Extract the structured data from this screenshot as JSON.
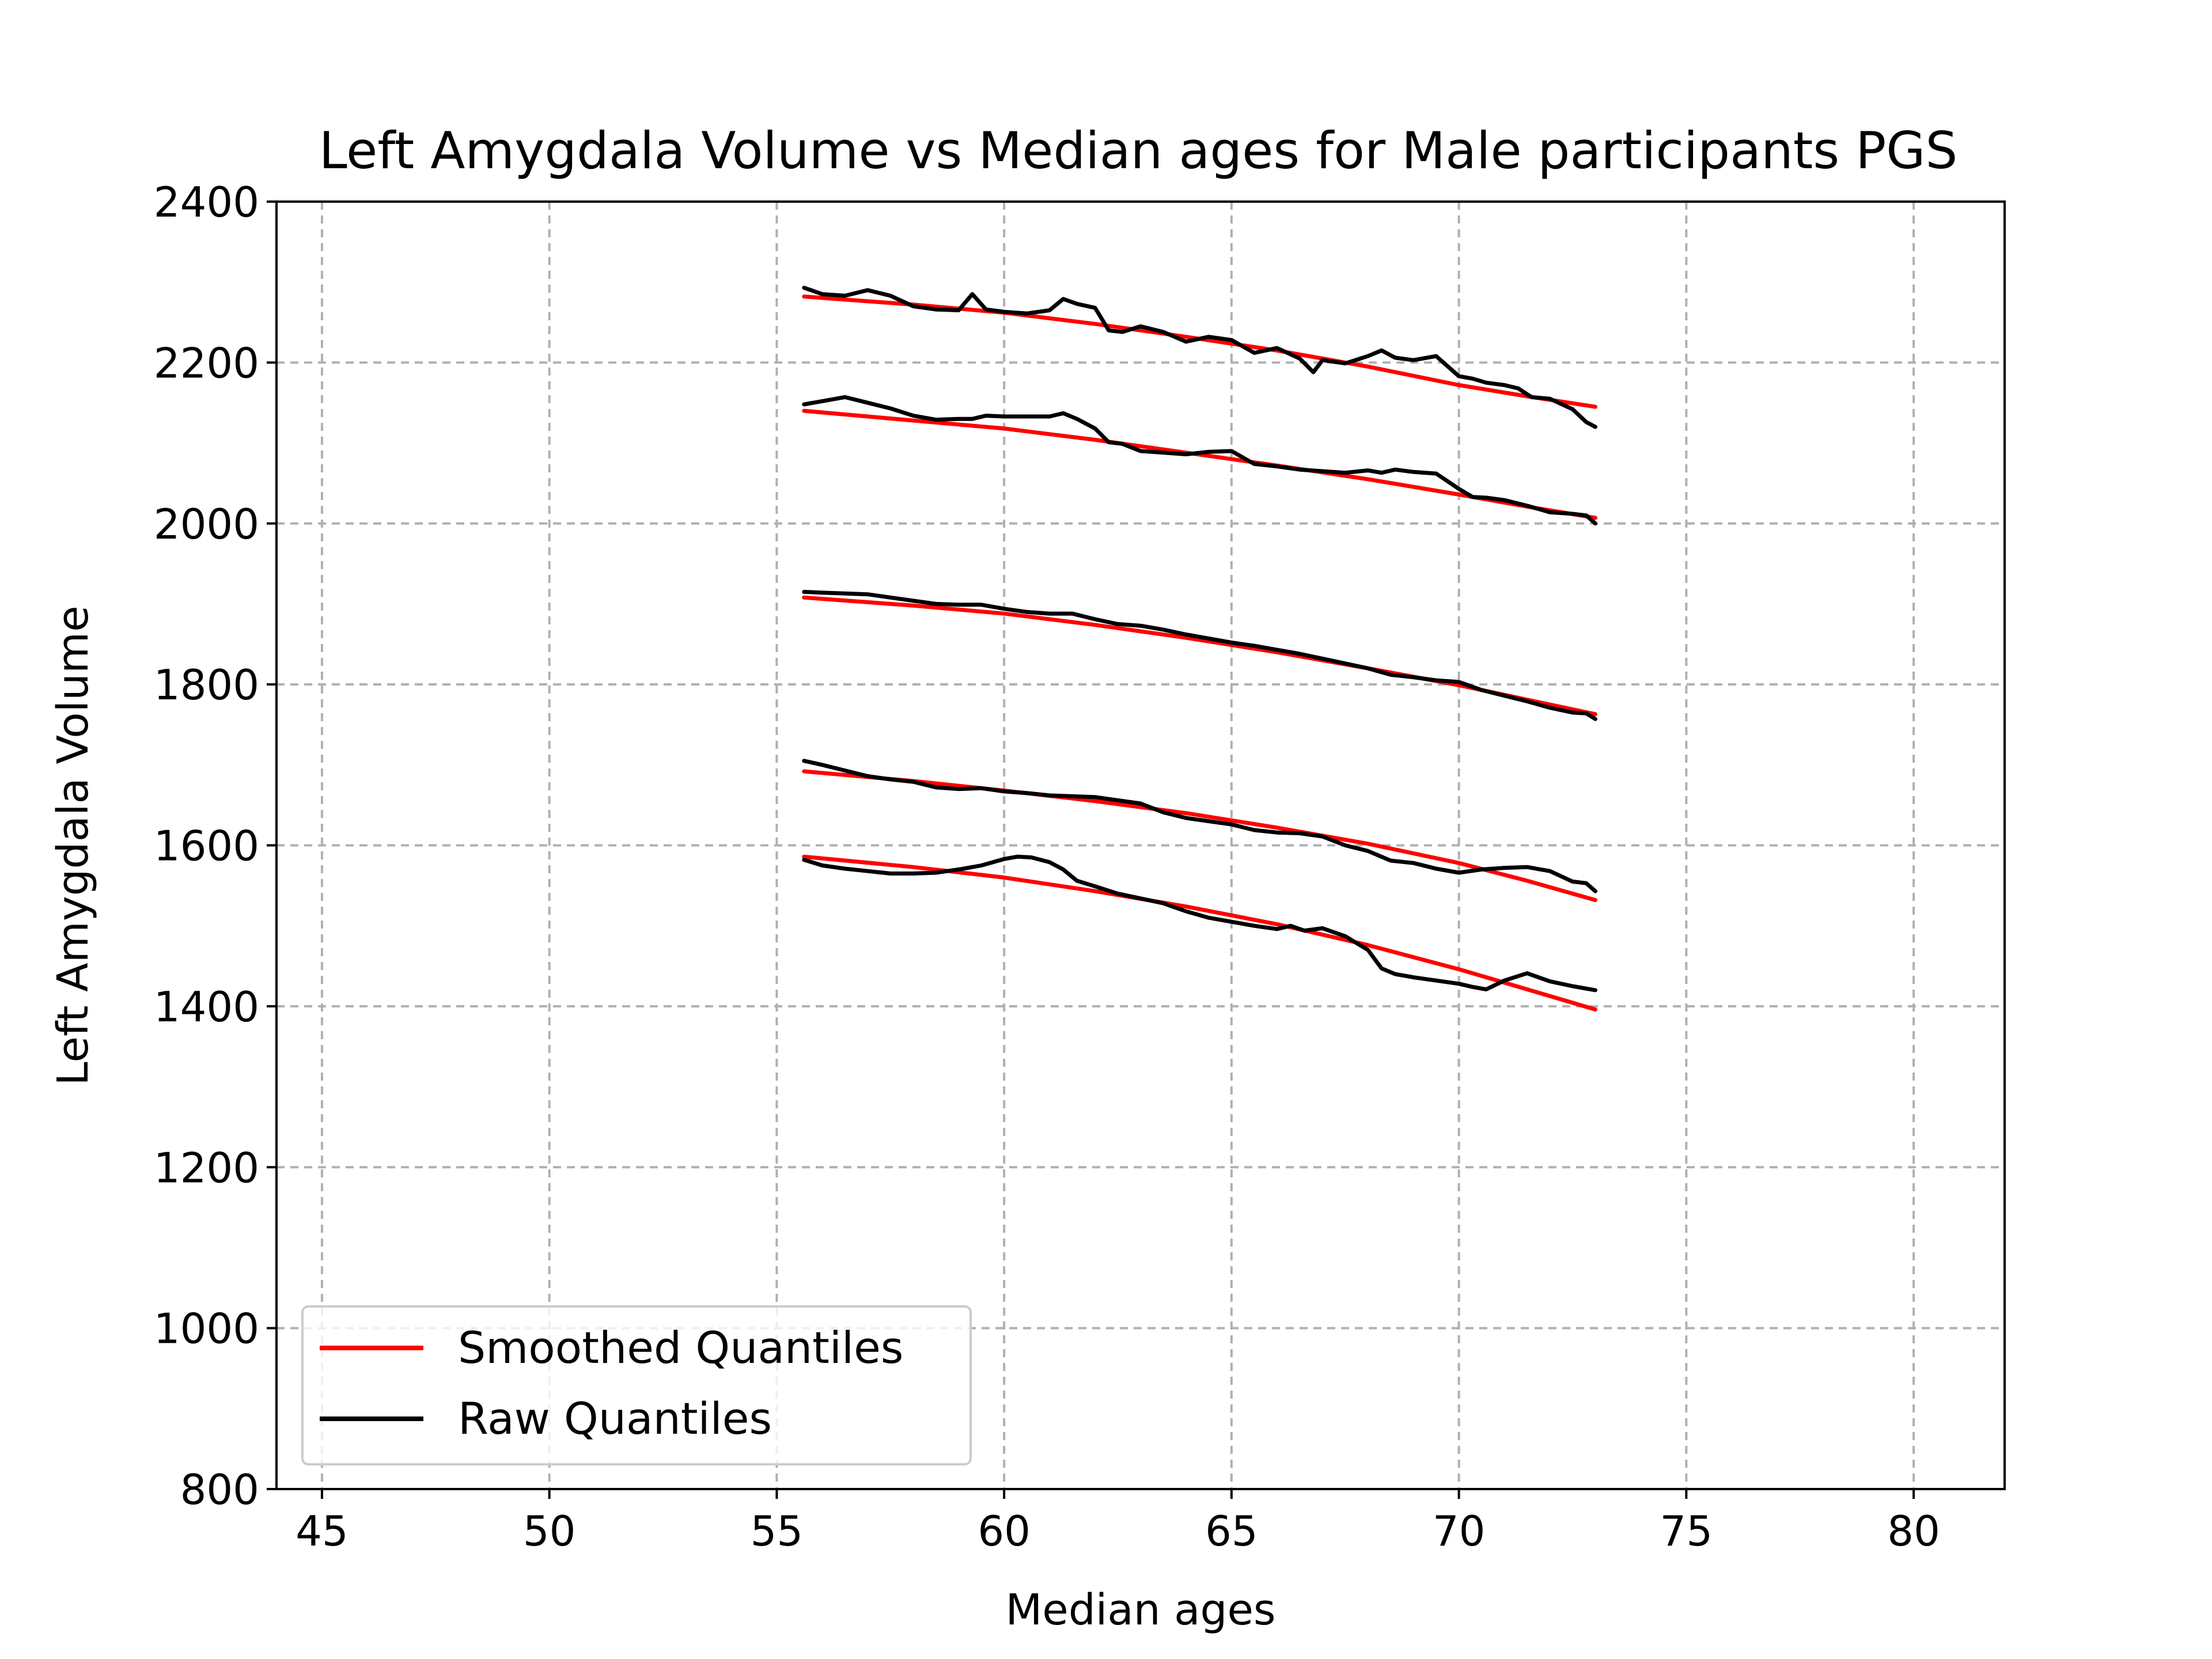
{
  "chart_data": {
    "type": "line",
    "title": "Left Amygdala Volume vs Median ages for Male participants  PGS",
    "xlabel": "Median ages",
    "ylabel": "Left Amygdala Volume",
    "xlim": [
      44,
      82
    ],
    "ylim": [
      800,
      2400
    ],
    "xticks": [
      45,
      50,
      55,
      60,
      65,
      70,
      75,
      80
    ],
    "yticks": [
      800,
      1000,
      1200,
      1400,
      1600,
      1800,
      2000,
      2200,
      2400
    ],
    "grid": true,
    "legend": {
      "position": "lower-left",
      "entries": [
        {
          "label": "Smoothed Quantiles",
          "color": "#ff0000"
        },
        {
          "label": "Raw Quantiles",
          "color": "#000000"
        }
      ]
    },
    "colors": {
      "smoothed": "#ff0000",
      "raw": "#000000"
    },
    "smoothed": [
      {
        "x": [
          55.6,
          58,
          60,
          62,
          64,
          66,
          68,
          70,
          71.5,
          73
        ],
        "y": [
          2282,
          2272,
          2262,
          2248,
          2232,
          2215,
          2195,
          2172,
          2158,
          2145
        ]
      },
      {
        "x": [
          55.6,
          58,
          60,
          62,
          64,
          66,
          68,
          70,
          71.5,
          73
        ],
        "y": [
          2140,
          2128,
          2118,
          2104,
          2088,
          2072,
          2055,
          2036,
          2021,
          2007
        ]
      },
      {
        "x": [
          55.6,
          58,
          60,
          62,
          64,
          66,
          68,
          70,
          71.5,
          73
        ],
        "y": [
          1908,
          1898,
          1888,
          1874,
          1858,
          1840,
          1820,
          1799,
          1781,
          1763
        ]
      },
      {
        "x": [
          55.6,
          58,
          60,
          62,
          64,
          66,
          68,
          70,
          71.5,
          73
        ],
        "y": [
          1692,
          1680,
          1668,
          1655,
          1640,
          1622,
          1602,
          1578,
          1556,
          1532
        ]
      },
      {
        "x": [
          55.6,
          58,
          60,
          62,
          64,
          66,
          68,
          70,
          71.5,
          73
        ],
        "y": [
          1586,
          1573,
          1560,
          1543,
          1524,
          1502,
          1476,
          1446,
          1421,
          1396
        ]
      }
    ],
    "raw": [
      {
        "x": [
          55.6,
          56,
          56.5,
          57,
          57.5,
          58,
          58.5,
          59,
          59.3,
          59.6,
          60,
          60.5,
          61,
          61.3,
          61.6,
          62,
          62.3,
          62.6,
          63,
          63.5,
          64,
          64.5,
          65,
          65.5,
          66,
          66.5,
          66.8,
          67,
          67.5,
          68,
          68.3,
          68.6,
          69,
          69.5,
          70,
          70.3,
          70.6,
          71,
          71.3,
          71.6,
          72,
          72.5,
          72.8,
          73
        ],
        "y": [
          2293,
          2285,
          2283,
          2290,
          2283,
          2270,
          2266,
          2265,
          2285,
          2266,
          2263,
          2261,
          2265,
          2279,
          2273,
          2268,
          2240,
          2238,
          2245,
          2238,
          2226,
          2232,
          2228,
          2212,
          2218,
          2205,
          2188,
          2203,
          2199,
          2208,
          2215,
          2206,
          2203,
          2208,
          2183,
          2180,
          2175,
          2172,
          2168,
          2157,
          2155,
          2142,
          2126,
          2120
        ]
      },
      {
        "x": [
          55.6,
          56,
          56.5,
          57,
          57.5,
          58,
          58.5,
          59,
          59.3,
          59.6,
          60,
          60.5,
          61,
          61.3,
          61.6,
          62,
          62.3,
          62.6,
          63,
          63.5,
          64,
          64.5,
          65,
          65.5,
          66,
          66.5,
          67,
          67.5,
          68,
          68.3,
          68.6,
          69,
          69.5,
          70,
          70.3,
          70.6,
          71,
          71.5,
          72,
          72.5,
          72.8,
          73
        ],
        "y": [
          2148,
          2152,
          2157,
          2150,
          2143,
          2134,
          2129,
          2130,
          2130,
          2134,
          2133,
          2133,
          2133,
          2137,
          2130,
          2118,
          2101,
          2099,
          2090,
          2088,
          2086,
          2089,
          2090,
          2074,
          2071,
          2067,
          2065,
          2063,
          2066,
          2063,
          2067,
          2064,
          2062,
          2043,
          2033,
          2032,
          2029,
          2022,
          2014,
          2012,
          2010,
          2000
        ]
      },
      {
        "x": [
          55.6,
          56,
          56.5,
          57,
          57.5,
          58,
          58.5,
          59,
          59.5,
          60,
          60.5,
          61,
          61.5,
          62,
          62.5,
          63,
          63.5,
          64,
          64.5,
          65,
          65.5,
          66,
          66.5,
          67,
          67.5,
          68,
          68.5,
          69,
          69.5,
          70,
          70.5,
          71,
          71.5,
          72,
          72.5,
          72.8,
          73
        ],
        "y": [
          1915,
          1914,
          1913,
          1912,
          1908,
          1904,
          1900,
          1899,
          1899,
          1894,
          1890,
          1888,
          1888,
          1881,
          1875,
          1873,
          1868,
          1862,
          1857,
          1852,
          1848,
          1843,
          1838,
          1832,
          1826,
          1820,
          1812,
          1809,
          1805,
          1803,
          1793,
          1786,
          1779,
          1771,
          1765,
          1764,
          1757
        ]
      },
      {
        "x": [
          55.6,
          56,
          56.5,
          57,
          57.5,
          58,
          58.5,
          59,
          59.5,
          60,
          60.5,
          61,
          61.5,
          62,
          62.5,
          63,
          63.5,
          64,
          64.5,
          65,
          65.5,
          66,
          66.5,
          67,
          67.5,
          68,
          68.5,
          69,
          69.5,
          70,
          70.5,
          71,
          71.5,
          72,
          72.5,
          72.8,
          73
        ],
        "y": [
          1705,
          1700,
          1693,
          1686,
          1682,
          1679,
          1672,
          1670,
          1671,
          1667,
          1665,
          1662,
          1661,
          1660,
          1656,
          1652,
          1641,
          1634,
          1630,
          1626,
          1619,
          1616,
          1615,
          1611,
          1600,
          1593,
          1581,
          1578,
          1571,
          1566,
          1570,
          1572,
          1573,
          1568,
          1555,
          1553,
          1543
        ]
      },
      {
        "x": [
          55.6,
          56,
          56.5,
          57,
          57.5,
          58,
          58.5,
          59,
          59.5,
          60,
          60.3,
          60.6,
          61,
          61.3,
          61.6,
          62,
          62.5,
          63,
          63.5,
          64,
          64.5,
          65,
          65.5,
          66,
          66.3,
          66.6,
          67,
          67.5,
          68,
          68.3,
          68.6,
          69,
          69.5,
          70,
          70.3,
          70.6,
          71,
          71.5,
          72,
          72.5,
          73
        ],
        "y": [
          1582,
          1575,
          1571,
          1568,
          1565,
          1565,
          1566,
          1570,
          1575,
          1583,
          1586,
          1585,
          1579,
          1570,
          1556,
          1549,
          1540,
          1534,
          1528,
          1518,
          1510,
          1505,
          1500,
          1496,
          1500,
          1494,
          1497,
          1487,
          1470,
          1447,
          1440,
          1436,
          1432,
          1428,
          1424,
          1421,
          1432,
          1441,
          1431,
          1425,
          1420
        ]
      }
    ]
  }
}
